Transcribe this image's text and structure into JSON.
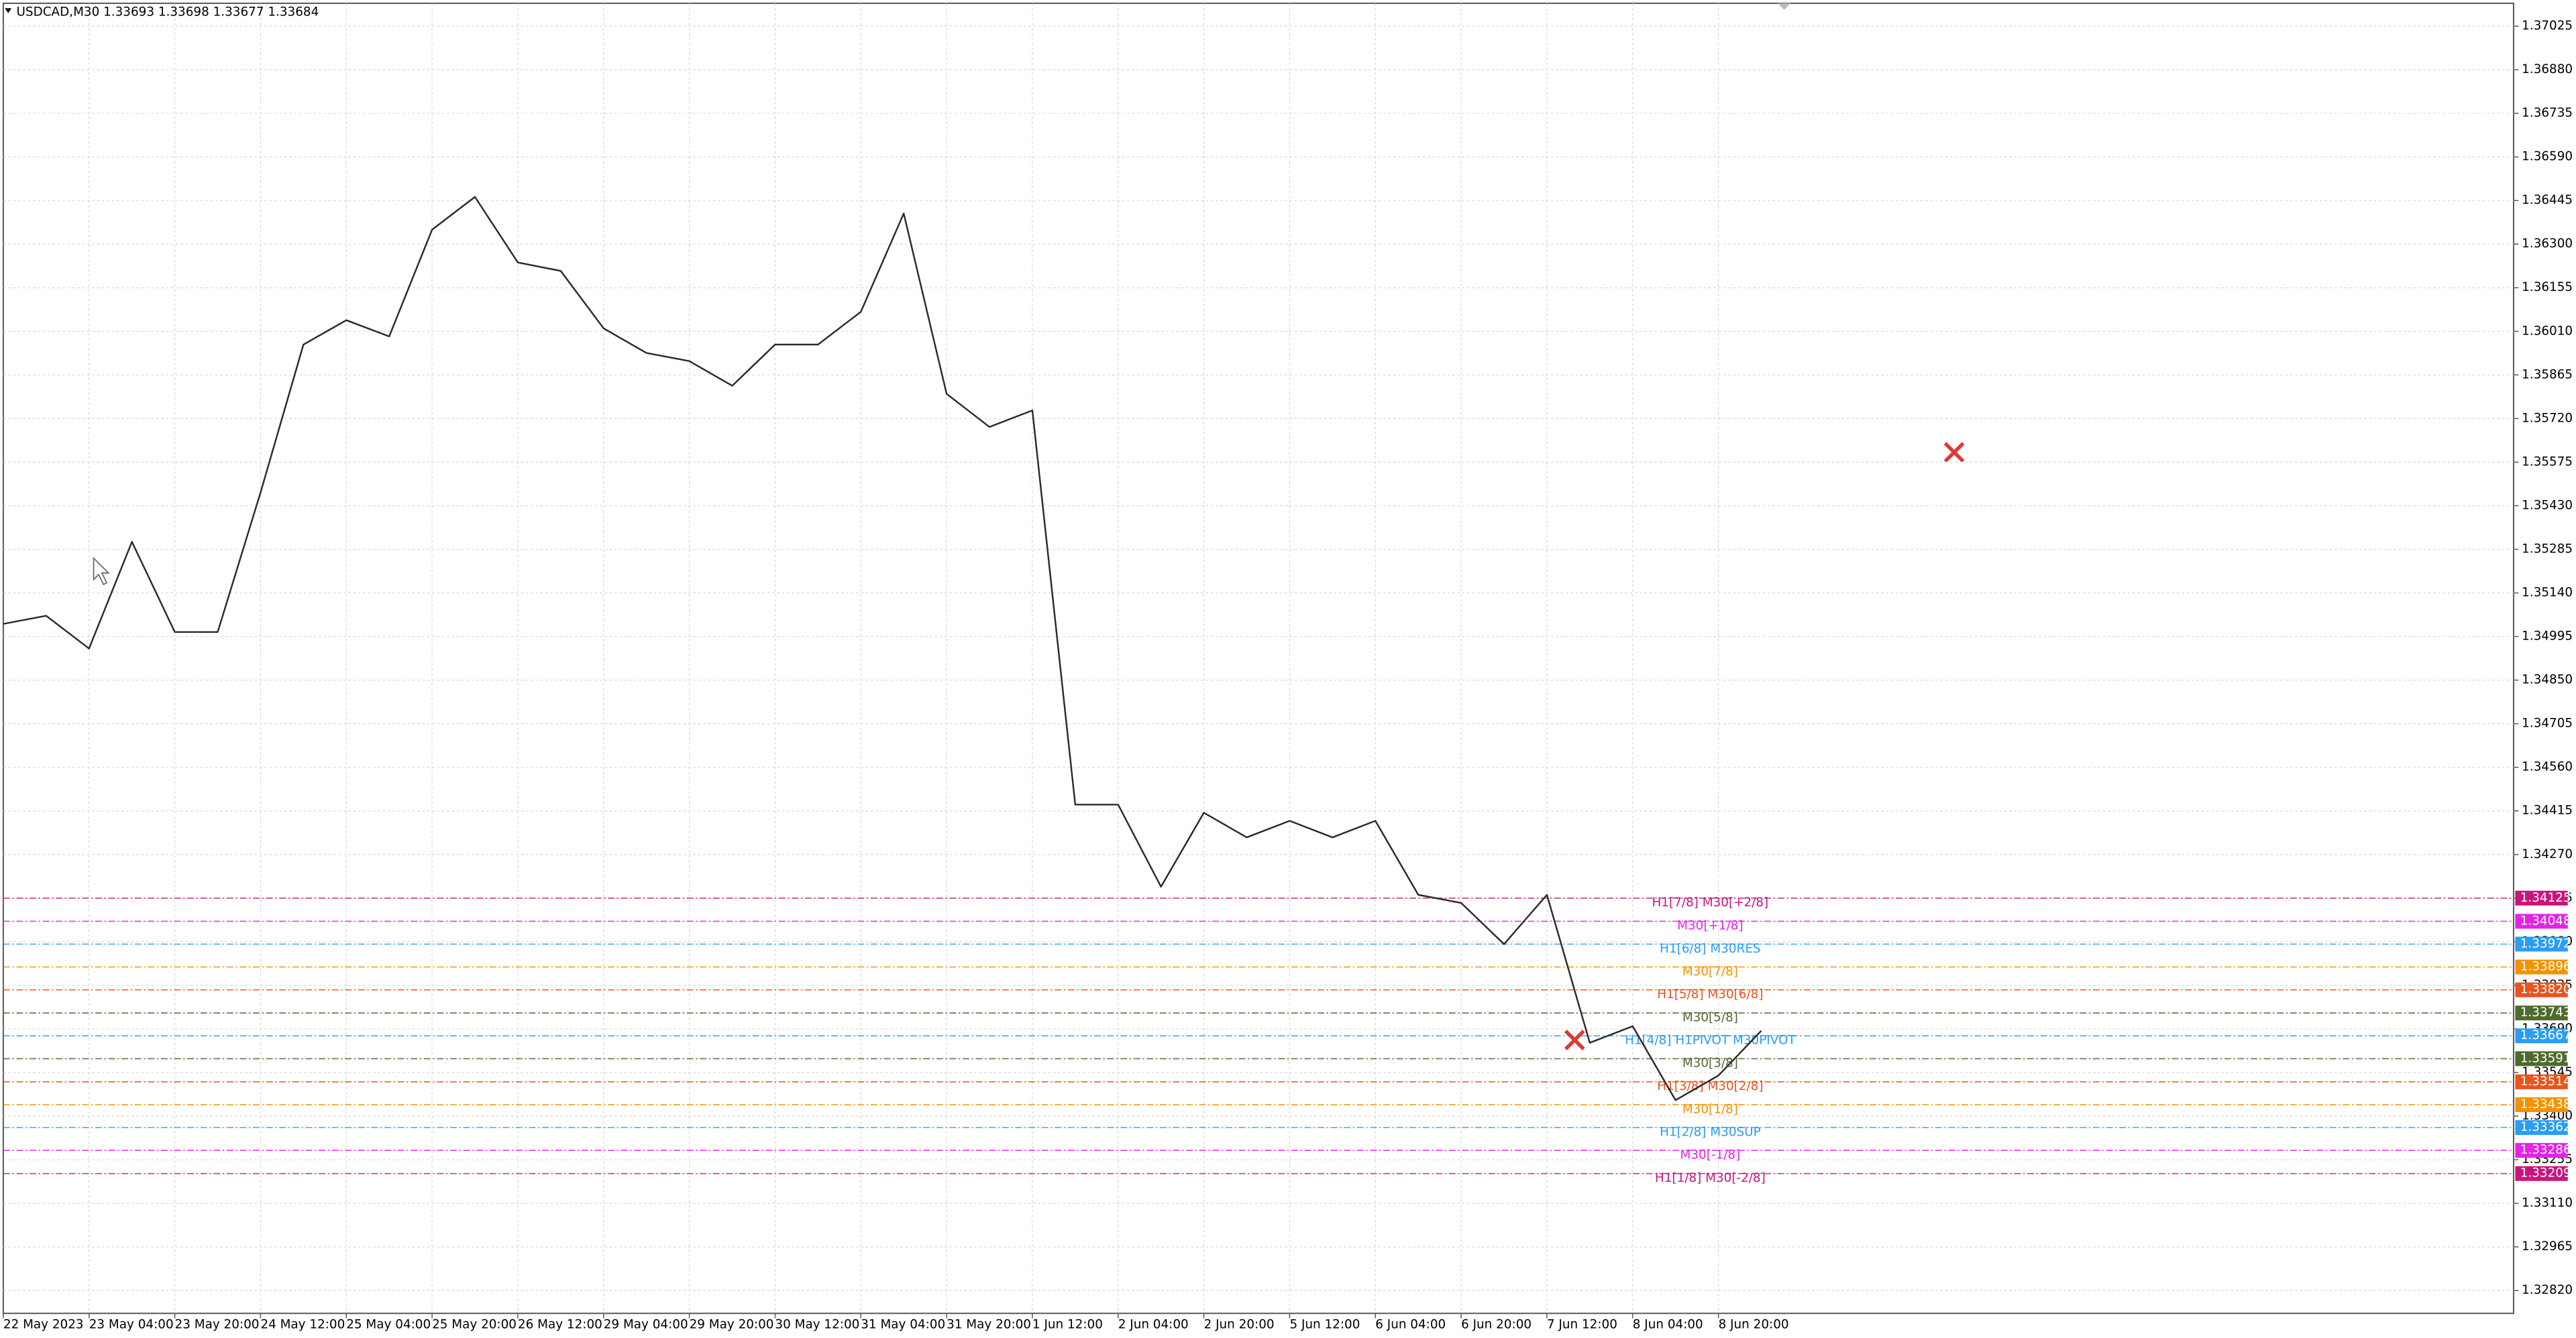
{
  "chart_data": {
    "type": "line",
    "title": "USDCAD,M30  1.33693 1.33698 1.33677 1.33684",
    "categories": [
      "22 May 2023",
      null,
      "23 May 04:00",
      null,
      "23 May 20:00",
      null,
      "24 May 12:00",
      null,
      "25 May 04:00",
      null,
      "25 May 20:00",
      null,
      "26 May 12:00",
      null,
      "29 May 04:00",
      null,
      "29 May 20:00",
      null,
      "30 May 12:00",
      null,
      "31 May 04:00",
      null,
      "31 May 20:00",
      null,
      "1 Jun 12:00",
      null,
      "2 Jun 04:00",
      null,
      "2 Jun 20:00",
      null,
      "5 Jun 12:00",
      null,
      "6 Jun 04:00",
      null,
      "6 Jun 20:00",
      null,
      "7 Jun 12:00",
      null,
      "8 Jun 04:00",
      null,
      "8 Jun 20:00",
      null
    ],
    "series": [
      {
        "name": "USDCAD",
        "color": "#2b2b2b",
        "values": [
          1.35037,
          1.35064,
          1.34955,
          1.3531,
          1.3501,
          1.3501,
          1.35474,
          1.35966,
          1.36047,
          1.35993,
          1.36348,
          1.36457,
          1.36239,
          1.36211,
          1.3602,
          1.35938,
          1.35911,
          1.35829,
          1.35966,
          1.35966,
          1.36075,
          1.36402,
          1.35802,
          1.35692,
          1.35747,
          1.34436,
          1.34436,
          1.34163,
          1.34409,
          1.34327,
          1.34382,
          1.34327,
          1.34382,
          1.34136,
          1.34109,
          1.33972,
          1.34136,
          1.33644,
          1.33699,
          1.33453,
          1.33535,
          1.33684
        ]
      }
    ],
    "ylim": [
      1.32744,
      1.37101
    ],
    "yticks": [
      1.37025,
      {
        "value": 1.3688,
        "label": "1.36880"
      },
      1.36735,
      {
        "value": 1.3659,
        "label": "1.36590"
      },
      1.36445,
      {
        "value": 1.363,
        "label": "1.36300"
      },
      1.36155,
      {
        "value": 1.3601,
        "label": "1.36010"
      },
      1.35865,
      {
        "value": 1.3572,
        "label": "1.35720"
      },
      1.35575,
      {
        "value": 1.3543,
        "label": "1.35430"
      },
      1.35285,
      {
        "value": 1.3514,
        "label": "1.35140"
      },
      1.34995,
      {
        "value": 1.3485,
        "label": "1.34850"
      },
      1.34705,
      {
        "value": 1.3456,
        "label": "1.34560"
      },
      1.34415,
      {
        "value": 1.3427,
        "label": "1.34270"
      },
      1.34125,
      {
        "value": 1.3398,
        "label": "1.33980"
      },
      1.33835,
      {
        "value": 1.3369,
        "label": "1.33690"
      },
      1.33545,
      {
        "value": 1.334,
        "label": "1.33400"
      },
      1.33255,
      {
        "value": 1.3311,
        "label": "1.33110"
      },
      1.32965,
      {
        "value": 1.3282,
        "label": "1.32820"
      }
    ],
    "grid": true,
    "levels": {
      "labels": [
        "H1[7/8] M30[+2/8]",
        "M30[+1/8]",
        "H1[6/8] M30RES",
        "M30[7/8]",
        "H1[5/8] M30[6/8]",
        "M30[5/8]",
        "H1[4/8] H1PIVOT M30PIVOT",
        "M30[3/8]",
        "H1[3/8] M30[2/8]",
        "M30[1/8]",
        "H1[2/8] M30SUP",
        "M30[-1/8]",
        "H1[1/8] M30[-2/8]"
      ],
      "values": [
        1.34125,
        1.34048,
        1.33972,
        1.33896,
        1.3382,
        1.33743,
        1.33667,
        1.33591,
        1.33514,
        1.33438,
        1.33362,
        1.33286,
        1.33209
      ],
      "value_labels": [
        "1.34125",
        "1.34048",
        "1.33972",
        "1.33896",
        "1.33820",
        "1.33743",
        "1.33667",
        "1.33591",
        "1.33514",
        "1.33438",
        "1.33362",
        "1.33286",
        "1.33209"
      ],
      "colors": [
        "#c8157d",
        "#e622e6",
        "#2a9df4",
        "#f39200",
        "#e8541c",
        "#4e6b2e",
        "#2a9df4",
        "#4e6b2e",
        "#e8541c",
        "#f39200",
        "#2a9df4",
        "#e622e6",
        "#c8157d"
      ]
    }
  }
}
